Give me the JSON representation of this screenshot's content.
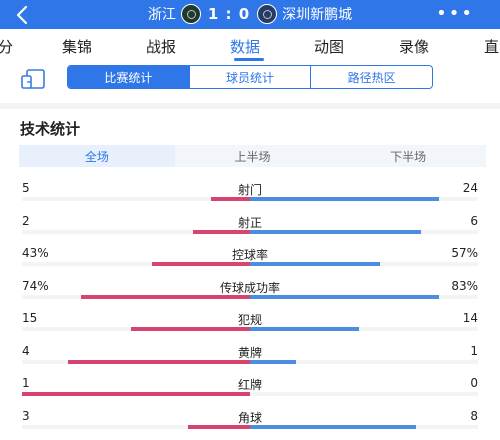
{
  "header": {
    "home_team": "浙江",
    "score": "1 : 0",
    "away_team": "深圳新鹏城",
    "more": "•••"
  },
  "nav": {
    "items": [
      "分",
      "集锦",
      "战报",
      "数据",
      "动图",
      "录像",
      "直"
    ],
    "active": "数据"
  },
  "subtabs": {
    "items": [
      "比赛统计",
      "球员统计",
      "路径热区"
    ],
    "active": "比赛统计"
  },
  "section_title": "技术统计",
  "period_tabs": {
    "items": [
      "全场",
      "上半场",
      "下半场"
    ],
    "active": "全场"
  },
  "stats": [
    {
      "name": "射门",
      "left": "5",
      "right": "24",
      "left_share": 0.17,
      "right_share": 0.83
    },
    {
      "name": "射正",
      "left": "2",
      "right": "6",
      "left_share": 0.25,
      "right_share": 0.75
    },
    {
      "name": "控球率",
      "left": "43%",
      "right": "57%",
      "left_share": 0.43,
      "right_share": 0.57
    },
    {
      "name": "传球成功率",
      "left": "74%",
      "right": "83%",
      "left_share": 0.74,
      "right_share": 0.83
    },
    {
      "name": "犯规",
      "left": "15",
      "right": "14",
      "left_share": 0.52,
      "right_share": 0.48
    },
    {
      "name": "黄牌",
      "left": "4",
      "right": "1",
      "left_share": 0.8,
      "right_share": 0.2
    },
    {
      "name": "红牌",
      "left": "1",
      "right": "0",
      "left_share": 1.0,
      "right_share": 0.0
    },
    {
      "name": "角球",
      "left": "3",
      "right": "8",
      "left_share": 0.27,
      "right_share": 0.73
    }
  ],
  "colors": {
    "brand": "#2f76e8",
    "home_bar": "#d64570",
    "away_bar": "#4d8de0"
  }
}
